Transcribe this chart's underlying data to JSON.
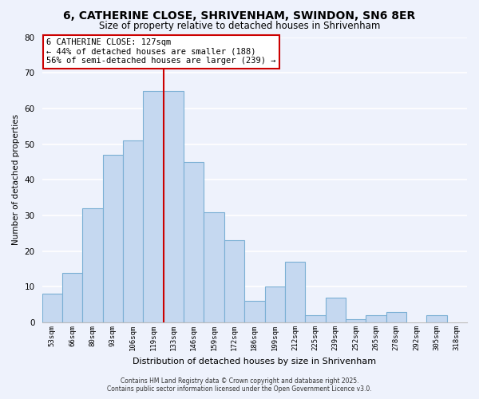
{
  "title": "6, CATHERINE CLOSE, SHRIVENHAM, SWINDON, SN6 8ER",
  "subtitle": "Size of property relative to detached houses in Shrivenham",
  "xlabel": "Distribution of detached houses by size in Shrivenham",
  "ylabel": "Number of detached properties",
  "bar_labels": [
    "53sqm",
    "66sqm",
    "80sqm",
    "93sqm",
    "106sqm",
    "119sqm",
    "133sqm",
    "146sqm",
    "159sqm",
    "172sqm",
    "186sqm",
    "199sqm",
    "212sqm",
    "225sqm",
    "239sqm",
    "252sqm",
    "265sqm",
    "278sqm",
    "292sqm",
    "305sqm",
    "318sqm"
  ],
  "bar_values": [
    8,
    14,
    32,
    47,
    51,
    65,
    65,
    45,
    31,
    23,
    6,
    10,
    17,
    2,
    7,
    1,
    2,
    3,
    0,
    2,
    0
  ],
  "bar_color": "#c5d8f0",
  "bar_edge_color": "#7aafd4",
  "background_color": "#eef2fc",
  "grid_color": "#ffffff",
  "ylim": [
    0,
    80
  ],
  "yticks": [
    0,
    10,
    20,
    30,
    40,
    50,
    60,
    70,
    80
  ],
  "marker_color": "#cc0000",
  "annotation_title": "6 CATHERINE CLOSE: 127sqm",
  "annotation_line1": "← 44% of detached houses are smaller (188)",
  "annotation_line2": "56% of semi-detached houses are larger (239) →",
  "footer1": "Contains HM Land Registry data © Crown copyright and database right 2025.",
  "footer2": "Contains public sector information licensed under the Open Government Licence v3.0."
}
